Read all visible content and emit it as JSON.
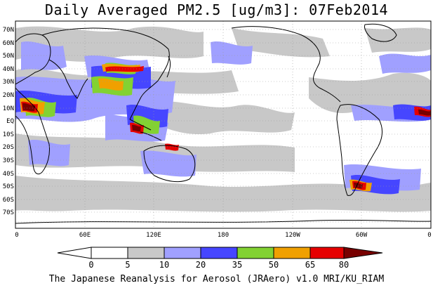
{
  "title": "Daily Averaged PM2.5 [ug/m3]: 07Feb2014",
  "footer": "The Japanese Reanalysis for Aerosol (JRAero) v1.0 MRI/KU_RIAM",
  "map": {
    "lat_labels": [
      "70N",
      "60N",
      "50N",
      "40N",
      "30N",
      "20N",
      "10N",
      "EQ",
      "10S",
      "20S",
      "30S",
      "40S",
      "50S",
      "60S",
      "70S"
    ],
    "lon_labels": [
      "0",
      "60E",
      "120E",
      "180",
      "120W",
      "60W",
      "0"
    ]
  },
  "colorbar": {
    "tick_labels": [
      "0",
      "5",
      "10",
      "20",
      "35",
      "50",
      "65",
      "80"
    ],
    "colors": [
      "#ffffff",
      "#c8c8c8",
      "#a0a0ff",
      "#4646ff",
      "#82d232",
      "#f0a000",
      "#e60000",
      "#780000"
    ]
  }
}
